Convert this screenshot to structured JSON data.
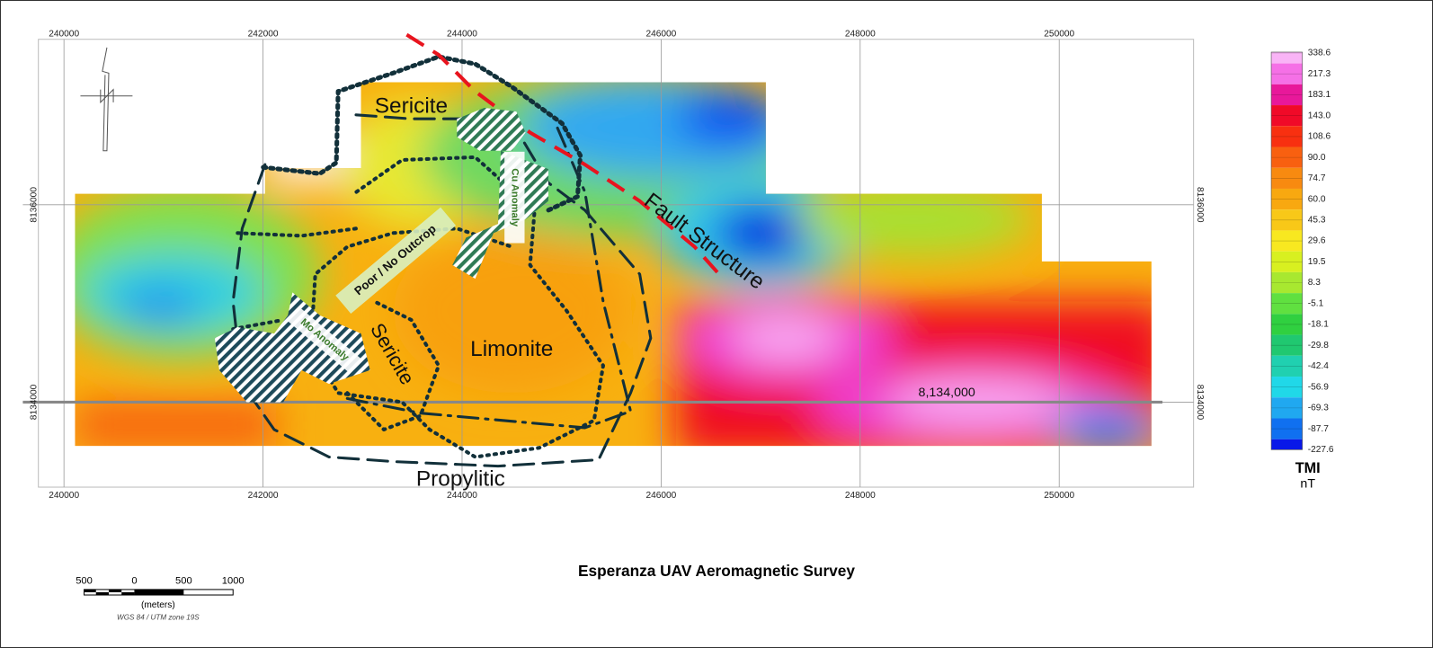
{
  "map": {
    "title": "Esperanza UAV Aeromagnetic Survey",
    "easting_labels": [
      "240000",
      "242000",
      "244000",
      "246000",
      "248000",
      "250000"
    ],
    "northing_labels": [
      "8136000",
      "8134000"
    ],
    "annotations": [
      "Sericite",
      "Sericite",
      "Limonite",
      "Propylitic",
      "Fault Structure",
      "Poor / No Outcrop",
      "Cu Anomaly",
      "Mo Anomaly",
      "8,134,000"
    ]
  },
  "legend": {
    "title": "TMI",
    "unit": "nT",
    "items": [
      {
        "label": "338.6",
        "color": "#f9b4f6"
      },
      {
        "label": "217.3",
        "color": "#f570e6"
      },
      {
        "label": "183.1",
        "color": "#e8189a"
      },
      {
        "label": "143.0",
        "color": "#f00a28"
      },
      {
        "label": "108.6",
        "color": "#f83010"
      },
      {
        "label": "90.0",
        "color": "#f86010"
      },
      {
        "label": "74.7",
        "color": "#f88a10"
      },
      {
        "label": "60.0",
        "color": "#f8a810"
      },
      {
        "label": "45.3",
        "color": "#f8c818"
      },
      {
        "label": "29.6",
        "color": "#f8e820"
      },
      {
        "label": "19.5",
        "color": "#d8f020"
      },
      {
        "label": "8.3",
        "color": "#a8e830"
      },
      {
        "label": "-5.1",
        "color": "#60e040"
      },
      {
        "label": "-18.1",
        "color": "#30d040"
      },
      {
        "label": "-29.8",
        "color": "#20c870"
      },
      {
        "label": "-42.4",
        "color": "#20d0b0"
      },
      {
        "label": "-56.9",
        "color": "#20d8e8"
      },
      {
        "label": "-69.3",
        "color": "#20a8f0"
      },
      {
        "label": "-87.7",
        "color": "#1070f0"
      },
      {
        "label": "-227.6",
        "color": "#0818e8"
      }
    ]
  },
  "scale_bar": {
    "labels": [
      "500",
      "0",
      "500",
      "1000"
    ],
    "unit": "(meters)",
    "projection": "WGS 84 / UTM zone 19S"
  }
}
